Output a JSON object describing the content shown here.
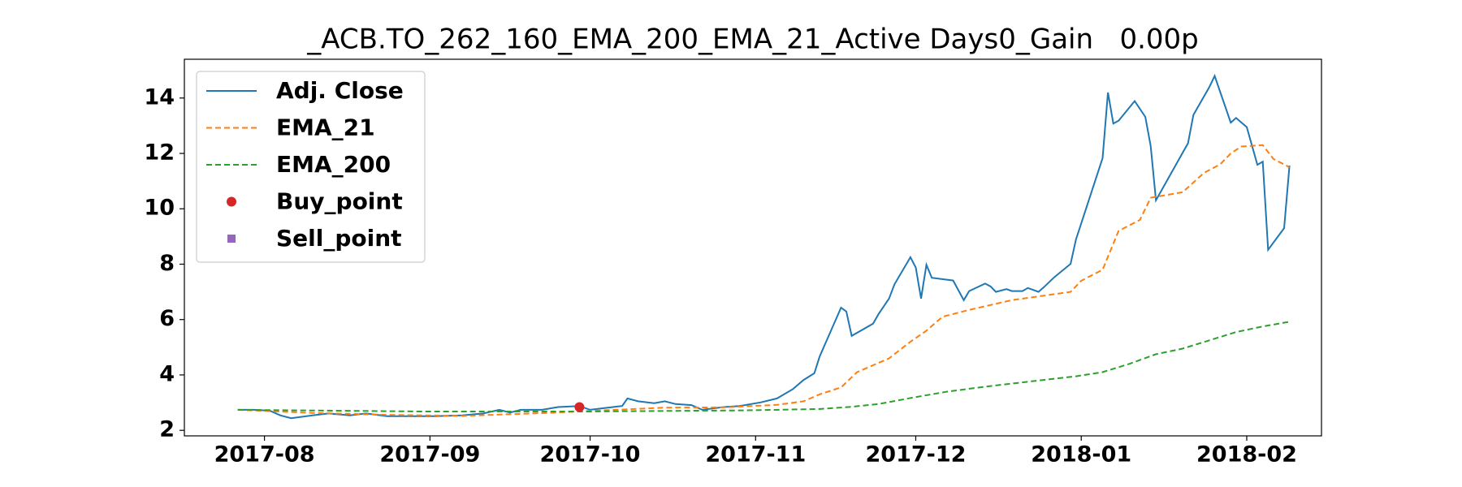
{
  "chart_data": {
    "type": "line",
    "title": "_ACB.TO_262_160_EMA_200_EMA_21_Active Days0_Gain   0.00p",
    "xlim": [
      -15,
      198
    ],
    "xticks": [
      {
        "value": 0,
        "label": "2017-08"
      },
      {
        "value": 31,
        "label": "2017-09"
      },
      {
        "value": 61,
        "label": "2017-10"
      },
      {
        "value": 92,
        "label": "2017-11"
      },
      {
        "value": 122,
        "label": "2017-12"
      },
      {
        "value": 153,
        "label": "2018-01"
      },
      {
        "value": 184,
        "label": "2018-02"
      }
    ],
    "ylim": [
      1.8,
      15.4
    ],
    "yticks": [
      2,
      4,
      6,
      8,
      10,
      12,
      14
    ],
    "legend": "upper left",
    "series": [
      {
        "name": "Adj. Close",
        "color": "#1f77b4",
        "linestyle": "solid",
        "marker": "none",
        "x": [
          -5,
          -2,
          1,
          3,
          5,
          9,
          12,
          16,
          19,
          23,
          27,
          32,
          37,
          41,
          44,
          46,
          48,
          52,
          55,
          59,
          61,
          64,
          67,
          68,
          70,
          73,
          75,
          77,
          80,
          82,
          86,
          89,
          93,
          96,
          99,
          101,
          103,
          104,
          108,
          109,
          110,
          114,
          115,
          117,
          118,
          121,
          122,
          123,
          124,
          125,
          129,
          131,
          132,
          135,
          136,
          137,
          139,
          140,
          142,
          143,
          145,
          146,
          148,
          151,
          152,
          157,
          158,
          159,
          160,
          163,
          165,
          166,
          167,
          173,
          174,
          177,
          178,
          181,
          182,
          184,
          186,
          187,
          188,
          191,
          192
        ],
        "values": [
          2.74,
          2.74,
          2.71,
          2.54,
          2.44,
          2.54,
          2.61,
          2.54,
          2.61,
          2.51,
          2.51,
          2.51,
          2.54,
          2.61,
          2.74,
          2.64,
          2.74,
          2.74,
          2.84,
          2.88,
          2.74,
          2.81,
          2.88,
          3.15,
          3.05,
          2.98,
          3.05,
          2.95,
          2.91,
          2.74,
          2.84,
          2.88,
          3.01,
          3.15,
          3.49,
          3.82,
          4.06,
          4.67,
          6.43,
          6.29,
          5.41,
          5.85,
          6.19,
          6.76,
          7.27,
          8.25,
          7.88,
          6.76,
          7.98,
          7.51,
          7.41,
          6.7,
          7.03,
          7.3,
          7.2,
          7.0,
          7.1,
          7.03,
          7.03,
          7.14,
          7.0,
          7.17,
          7.54,
          8.01,
          8.89,
          11.83,
          14.2,
          13.08,
          13.18,
          13.89,
          13.32,
          12.27,
          10.31,
          12.37,
          13.39,
          14.4,
          14.8,
          13.11,
          13.28,
          12.95,
          11.59,
          11.7,
          8.52,
          9.3,
          11.56
        ]
      },
      {
        "name": "EMA_21",
        "color": "#ff7f0e",
        "linestyle": "dashed",
        "marker": "none",
        "x": [
          -5,
          9,
          23,
          37,
          52,
          61,
          75,
          86,
          96,
          101,
          104,
          108,
          111,
          114,
          117,
          121,
          124,
          127,
          132,
          140,
          151,
          153,
          157,
          160,
          164,
          166,
          172,
          176,
          179,
          181,
          183,
          187,
          189,
          192
        ],
        "values": [
          2.74,
          2.63,
          2.56,
          2.52,
          2.62,
          2.7,
          2.82,
          2.83,
          2.92,
          3.05,
          3.3,
          3.55,
          4.1,
          4.35,
          4.6,
          5.2,
          5.6,
          6.1,
          6.35,
          6.7,
          7.0,
          7.4,
          7.8,
          9.2,
          9.6,
          10.4,
          10.6,
          11.3,
          11.6,
          12.0,
          12.25,
          12.3,
          11.8,
          11.5
        ]
      },
      {
        "name": "EMA_200",
        "color": "#2ca02c",
        "linestyle": "dashed",
        "marker": "none",
        "x": [
          -5,
          30,
          60,
          90,
          104,
          110,
          115,
          122,
          128,
          136,
          145,
          152,
          157,
          162,
          167,
          172,
          177,
          182,
          187,
          192
        ],
        "values": [
          2.74,
          2.68,
          2.68,
          2.72,
          2.77,
          2.85,
          2.95,
          3.2,
          3.4,
          3.6,
          3.8,
          3.95,
          4.1,
          4.4,
          4.75,
          4.95,
          5.25,
          5.55,
          5.75,
          5.92
        ]
      },
      {
        "name": "Buy_point",
        "color": "#d62728",
        "linestyle": "none",
        "marker": "circle",
        "x": [
          59
        ],
        "values": [
          2.84
        ]
      },
      {
        "name": "Sell_point",
        "color": "#9467bd",
        "linestyle": "none",
        "marker": "square",
        "x": [],
        "values": []
      }
    ]
  }
}
